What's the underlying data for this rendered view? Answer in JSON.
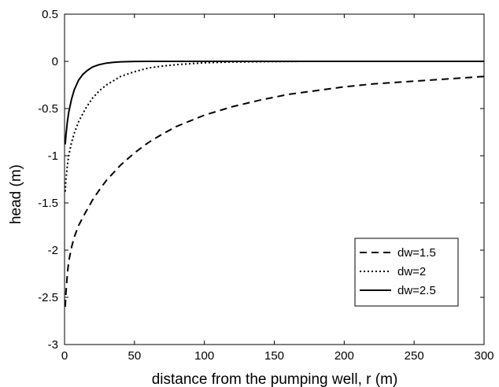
{
  "chart_data": {
    "type": "line",
    "title": "",
    "xlabel": "distance from the pumping well, r (m)",
    "ylabel": "head (m)",
    "xlim": [
      0,
      300
    ],
    "ylim": [
      -3,
      0.5
    ],
    "xticks": [
      0,
      50,
      100,
      150,
      200,
      250,
      300
    ],
    "yticks": [
      -3,
      -2.5,
      -2,
      -1.5,
      -1,
      -0.5,
      0,
      0.5
    ],
    "xtick_labels": [
      "0",
      "50",
      "100",
      "150",
      "200",
      "250",
      "300"
    ],
    "ytick_labels": [
      "-3",
      "-2.5",
      "-2",
      "-1.5",
      "-1",
      "-0.5",
      "0",
      "0.5"
    ],
    "grid": false,
    "legend_position": "lower-right",
    "series": [
      {
        "name": "dw=1.5",
        "line_style": "dashed",
        "color": "#000000",
        "x": [
          0.5,
          1,
          2,
          3,
          5,
          7,
          10,
          15,
          20,
          25,
          30,
          40,
          50,
          60,
          70,
          80,
          90,
          100,
          120,
          140,
          160,
          180,
          200,
          220,
          240,
          260,
          280,
          300
        ],
        "y": [
          -2.6,
          -2.45,
          -2.25,
          -2.12,
          -1.97,
          -1.86,
          -1.74,
          -1.6,
          -1.47,
          -1.36,
          -1.26,
          -1.1,
          -0.97,
          -0.86,
          -0.77,
          -0.69,
          -0.63,
          -0.57,
          -0.48,
          -0.41,
          -0.35,
          -0.31,
          -0.27,
          -0.24,
          -0.22,
          -0.2,
          -0.18,
          -0.16
        ]
      },
      {
        "name": "dw=2",
        "line_style": "dotted",
        "color": "#000000",
        "x": [
          0.5,
          1,
          2,
          3,
          5,
          7,
          10,
          15,
          20,
          25,
          30,
          40,
          50,
          60,
          70,
          80,
          100,
          120,
          140,
          160,
          180,
          200,
          300
        ],
        "y": [
          -1.38,
          -1.25,
          -1.1,
          -1.0,
          -0.86,
          -0.76,
          -0.64,
          -0.5,
          -0.39,
          -0.31,
          -0.25,
          -0.16,
          -0.11,
          -0.07,
          -0.05,
          -0.035,
          -0.015,
          -0.007,
          -0.003,
          -0.001,
          0,
          0,
          0
        ]
      },
      {
        "name": "dw=2.5",
        "line_style": "solid",
        "color": "#000000",
        "x": [
          0.5,
          1,
          2,
          3,
          5,
          7,
          10,
          13,
          16,
          20,
          25,
          30,
          35,
          40,
          45,
          50,
          60,
          70,
          80,
          100,
          300
        ],
        "y": [
          -0.88,
          -0.78,
          -0.64,
          -0.54,
          -0.4,
          -0.3,
          -0.2,
          -0.14,
          -0.1,
          -0.06,
          -0.034,
          -0.018,
          -0.01,
          -0.005,
          -0.003,
          -0.001,
          0,
          0,
          0,
          0,
          0
        ]
      }
    ]
  }
}
